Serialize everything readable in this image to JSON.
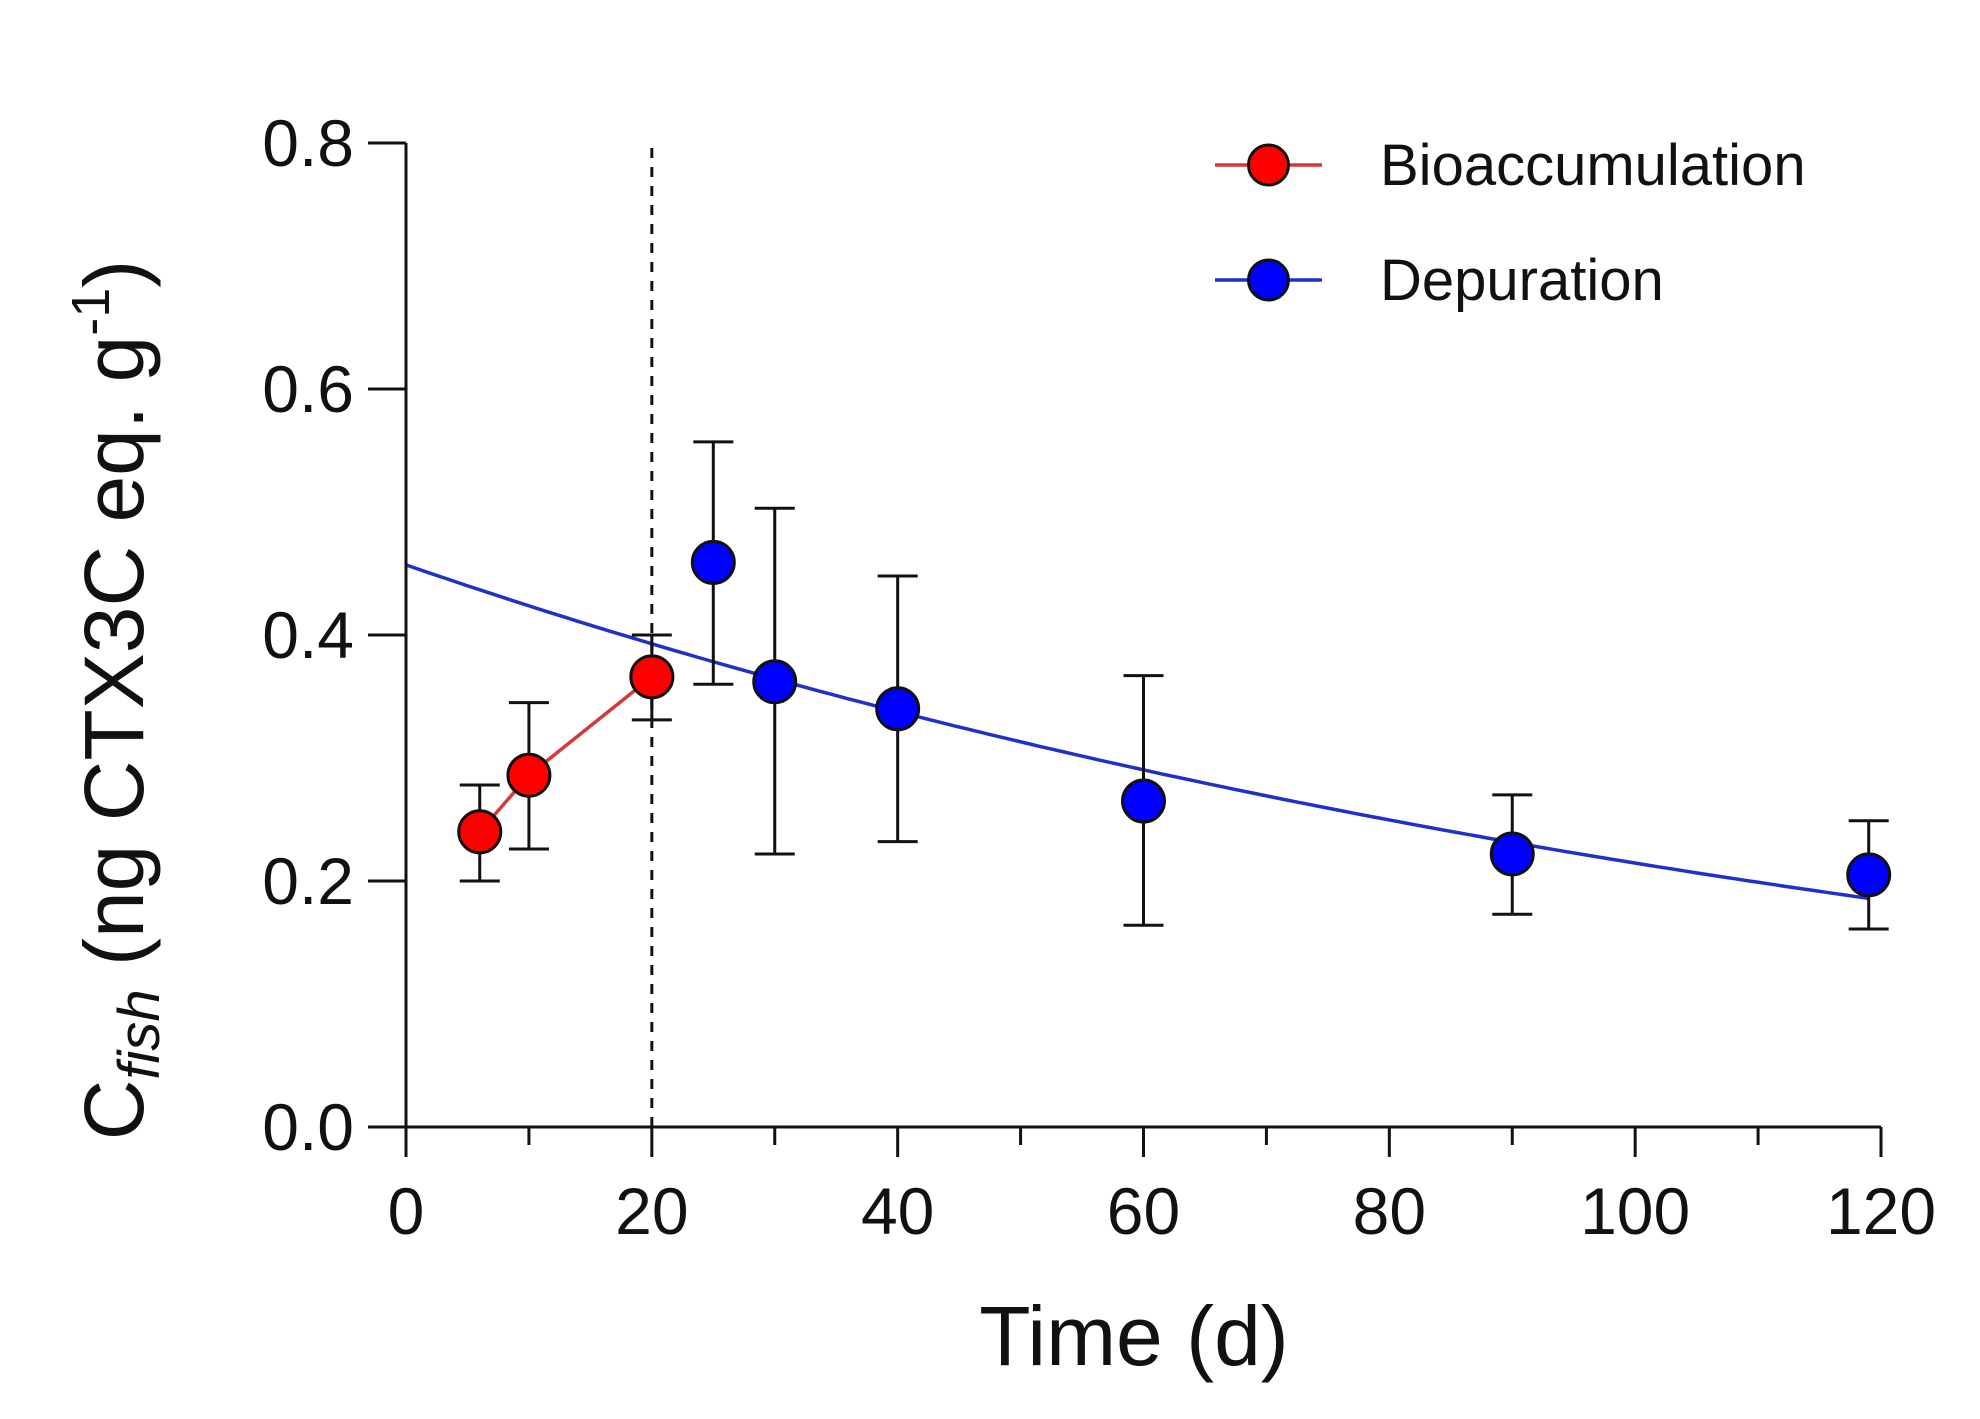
{
  "chart_data": {
    "type": "scatter",
    "xlabel": "Time (d)",
    "ylabel": {
      "prefix": "C",
      "subscript": "fish",
      "main": " (ng CTX3C eq. g",
      "superscript": "-1",
      "suffix": ")"
    },
    "xlim": [
      0,
      120
    ],
    "ylim": [
      0.0,
      0.8
    ],
    "x_ticks": [
      0,
      20,
      40,
      60,
      80,
      100,
      120
    ],
    "x_tick_labels": [
      "0",
      "20",
      "40",
      "60",
      "80",
      "100",
      "120"
    ],
    "y_ticks": [
      0.0,
      0.2,
      0.4,
      0.6,
      0.8
    ],
    "y_tick_labels": [
      "0.0",
      "0.2",
      "0.4",
      "0.6",
      "0.8"
    ],
    "grid": false,
    "legend_position": "top-right",
    "vertical_reference_line": {
      "x": 20,
      "style": "dashed"
    },
    "series": [
      {
        "name": "Bioaccumulation",
        "color": "#ff0000",
        "line_color": "#d43a3a",
        "connect_points": true,
        "points": [
          {
            "x": 6,
            "y": 0.24,
            "err_low": 0.2,
            "err_high": 0.278
          },
          {
            "x": 10,
            "y": 0.286,
            "err_low": 0.226,
            "err_high": 0.345
          },
          {
            "x": 20,
            "y": 0.366,
            "err_low": 0.331,
            "err_high": 0.4
          }
        ]
      },
      {
        "name": "Depuration",
        "color": "#0000ff",
        "line_color": "#2030c8",
        "connect_points": false,
        "points": [
          {
            "x": 25,
            "y": 0.459,
            "err_low": 0.36,
            "err_high": 0.557
          },
          {
            "x": 30,
            "y": 0.362,
            "err_low": 0.222,
            "err_high": 0.503
          },
          {
            "x": 40,
            "y": 0.34,
            "err_low": 0.232,
            "err_high": 0.448
          },
          {
            "x": 60,
            "y": 0.265,
            "err_low": 0.164,
            "err_high": 0.367
          },
          {
            "x": 90,
            "y": 0.222,
            "err_low": 0.173,
            "err_high": 0.27
          },
          {
            "x": 119,
            "y": 0.205,
            "err_low": 0.161,
            "err_high": 0.249
          }
        ],
        "fit_curve": {
          "model": "exponential decay",
          "c0": 0.457,
          "k": 0.00756,
          "x_range": [
            0,
            119
          ]
        }
      }
    ]
  }
}
